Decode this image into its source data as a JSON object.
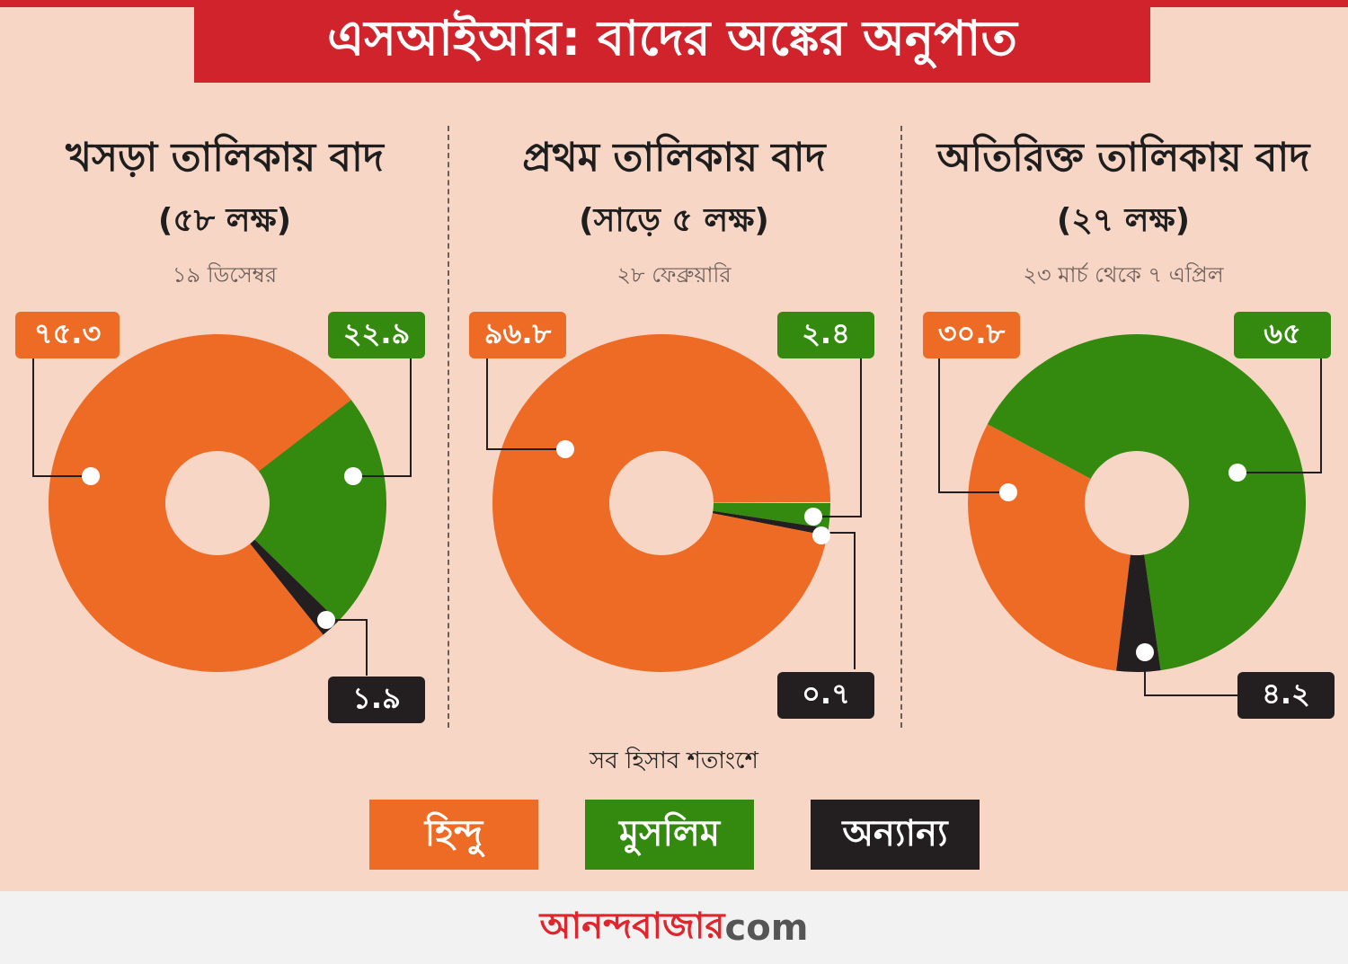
{
  "header": {
    "title": "এসআইআর: বাদের অঙ্কের অনুপাত"
  },
  "colors": {
    "hindu": "#ee6b25",
    "muslim": "#338a0e",
    "others": "#231f20",
    "title_red": "#d1232b",
    "background": "#f7d6c6"
  },
  "panels": [
    {
      "heading": "খসড়া তালিকায় বাদ",
      "total": "(৫৮ লক্ষ)",
      "date": "১৯ ডিসেম্বর",
      "labels": {
        "hindu": "৭৫.৩",
        "muslim": "২২.৯",
        "others": "১.৯"
      }
    },
    {
      "heading": "প্রথম তালিকায় বাদ",
      "total": "(সাড়ে ৫ লক্ষ)",
      "date": "২৮ ফেব্রুয়ারি",
      "labels": {
        "hindu": "৯৬.৮",
        "muslim": "২.৪",
        "others": "০.৭"
      }
    },
    {
      "heading": "অতিরিক্ত তালিকায় বাদ",
      "total": "(২৭ লক্ষ)",
      "date": "২৩ মার্চ থেকে ৭ এপ্রিল",
      "labels": {
        "hindu": "৩০.৮",
        "muslim": "৬৫",
        "others": "৪.২"
      }
    }
  ],
  "note": "সব হিসাব শতাংশে",
  "legend": {
    "hindu": "হিন্দু",
    "muslim": "মুসলিম",
    "others": "অন্যান্য"
  },
  "footer": {
    "brand": "আনন্দবাজার",
    "suffix": "com"
  },
  "chart_data": [
    {
      "type": "pie",
      "title": "খসড়া তালিকায় বাদ (৫৮ লক্ষ)",
      "subtitle": "১৯ ডিসেম্বর",
      "unit": "percent",
      "categories": [
        "হিন্দু",
        "মুসলিম",
        "অন্যান্য"
      ],
      "values": [
        75.3,
        22.9,
        1.9
      ],
      "start_deg": 52
    },
    {
      "type": "pie",
      "title": "প্রথম তালিকায় বাদ (সাড়ে ৫ লক্ষ)",
      "subtitle": "২৮ ফেব্রুয়ারি",
      "unit": "percent",
      "categories": [
        "হিন্দু",
        "মুসলিম",
        "অন্যান্য"
      ],
      "values": [
        96.8,
        2.4,
        0.7
      ],
      "start_deg": 90
    },
    {
      "type": "pie",
      "title": "অতিরিক্ত তালিকায় বাদ (২৭ লক্ষ)",
      "subtitle": "২৩ মার্চ থেকে ৭ এপ্রিল",
      "unit": "percent",
      "categories": [
        "হিন্দু",
        "মুসলিম",
        "অন্যান্য"
      ],
      "values": [
        30.8,
        65,
        4.2
      ],
      "start_deg": -62
    }
  ]
}
